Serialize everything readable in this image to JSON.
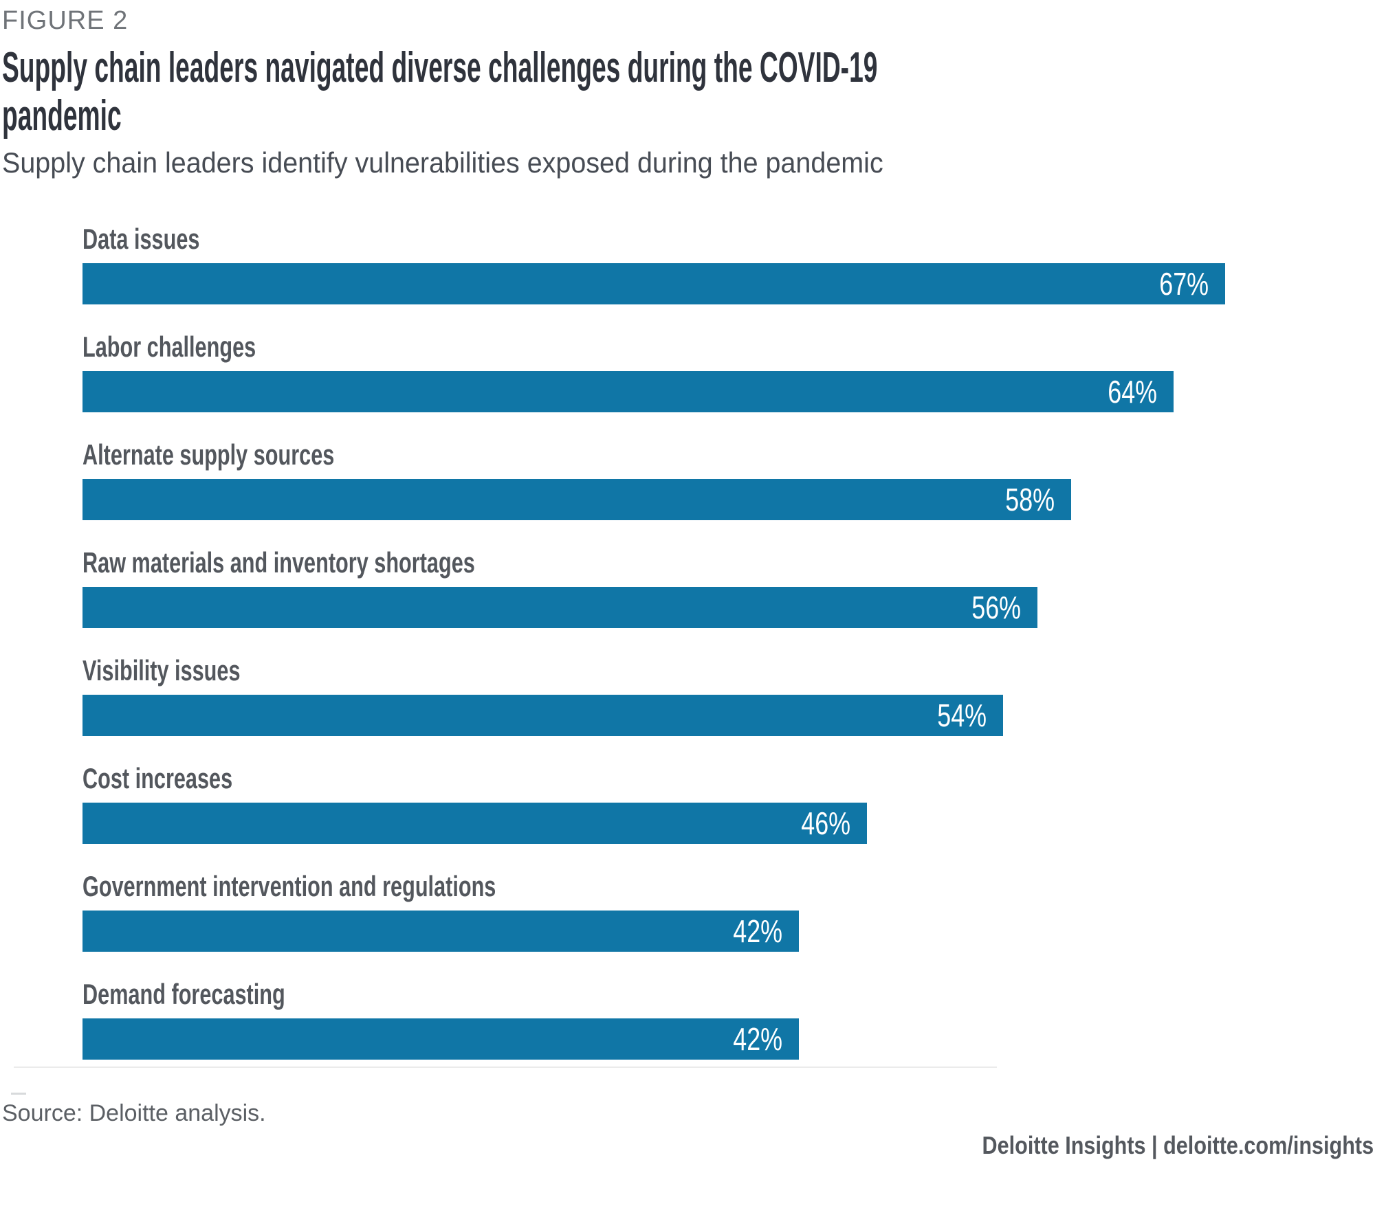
{
  "figure_label": "FIGURE 2",
  "title_lines": [
    "Supply chain leaders navigated diverse challenges during the COVID-19",
    "pandemic"
  ],
  "subtitle": "Supply chain leaders identify vulnerabilities exposed during the pandemic",
  "source_note": "Source: Deloitte analysis.",
  "footer_credit": "Deloitte Insights | deloitte.com/insights",
  "colors": {
    "bar_fill": "#1076A6",
    "bar_value_text": "#FFFFFF",
    "title_text": "#2F333C",
    "figure_label_text": "#6F7378",
    "subtitle_text": "#474C54",
    "category_label_text": "#53575D",
    "source_text": "#5B5F64",
    "footer_text": "#54585E",
    "divider": "#EBEBEB"
  },
  "chart_data": {
    "type": "bar",
    "orientation": "horizontal",
    "title": "Supply chain leaders navigated diverse challenges during the COVID-19 pandemic",
    "subtitle": "Supply chain leaders identify vulnerabilities exposed during the pandemic",
    "categories": [
      "Data issues",
      "Labor challenges",
      "Alternate supply sources",
      "Raw materials and inventory shortages",
      "Visibility issues",
      "Cost increases",
      "Government intervention and regulations",
      "Demand forecasting"
    ],
    "values": [
      67,
      64,
      58,
      56,
      54,
      46,
      42,
      42
    ],
    "unit": "%",
    "value_labels": [
      "67%",
      "64%",
      "58%",
      "56%",
      "54%",
      "46%",
      "42%",
      "42%"
    ],
    "value_label_position": "inside-end",
    "xlim": [
      0,
      75
    ],
    "grid": false,
    "legend": false,
    "bar_color": "#1076A6"
  }
}
